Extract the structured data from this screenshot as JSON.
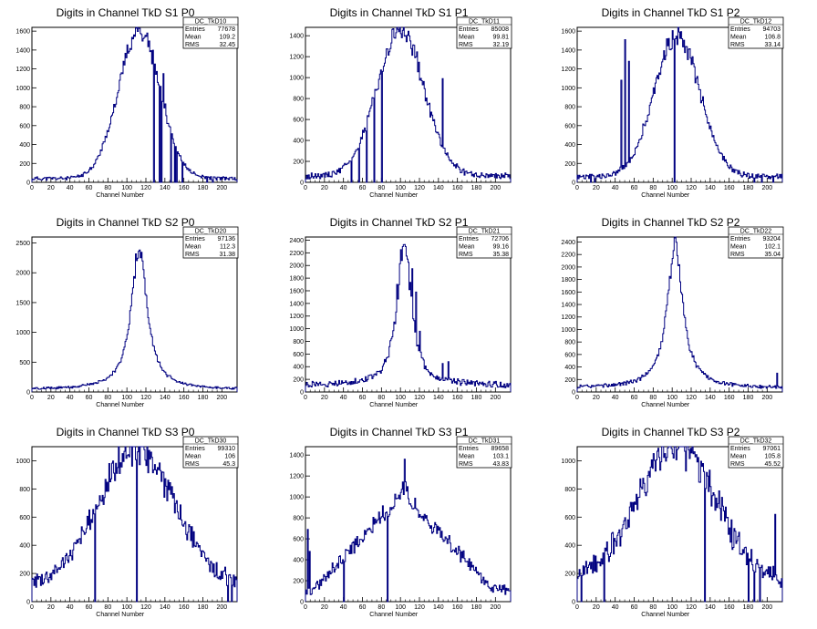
{
  "chart_data": [
    {
      "id": "TkD10",
      "type": "area",
      "title": "Digits in Channel TkD S1 P0",
      "xlabel": "Channel Number",
      "xlim": [
        0,
        216
      ],
      "ylim": [
        0,
        1640
      ],
      "yticks": [
        0,
        200,
        400,
        600,
        800,
        1000,
        1200,
        1400,
        1600
      ],
      "stats": {
        "name": "DC_TkD10",
        "entries": "77678",
        "mean": "109.2",
        "rms": "32.45"
      },
      "shape": {
        "type": "gauss",
        "mu": 113,
        "sigma": 22,
        "amp": 1570,
        "base": 40,
        "noise": 0.06,
        "seed": 11
      },
      "spikes": [
        [
          128,
          0
        ],
        [
          134,
          0
        ],
        [
          136,
          0
        ],
        [
          138,
          1150
        ],
        [
          140,
          830
        ],
        [
          146,
          0
        ],
        [
          150,
          0
        ],
        [
          152,
          0
        ],
        [
          158,
          0
        ],
        [
          184,
          0
        ],
        [
          190,
          0
        ]
      ]
    },
    {
      "id": "TkD11",
      "type": "area",
      "title": "Digits in Channel TkD S1 P1",
      "xlabel": "Channel Number",
      "xlim": [
        0,
        216
      ],
      "ylim": [
        0,
        1480
      ],
      "yticks": [
        0,
        200,
        400,
        600,
        800,
        1000,
        1200,
        1400
      ],
      "stats": {
        "name": "DC_TkD11",
        "entries": "85008",
        "mean": "99.81",
        "rms": "32.19"
      },
      "shape": {
        "type": "gauss",
        "mu": 100,
        "sigma": 25,
        "amp": 1390,
        "base": 60,
        "noise": 0.07,
        "seed": 22
      },
      "spikes": [
        [
          48,
          0
        ],
        [
          56,
          0
        ],
        [
          64,
          0
        ],
        [
          72,
          0
        ],
        [
          80,
          0
        ],
        [
          100,
          1420
        ],
        [
          144,
          990
        ]
      ]
    },
    {
      "id": "TkD12",
      "type": "area",
      "title": "Digits in Channel TkD S1 P2",
      "xlabel": "Channel Number",
      "xlim": [
        0,
        216
      ],
      "ylim": [
        0,
        1640
      ],
      "yticks": [
        0,
        200,
        400,
        600,
        800,
        1000,
        1200,
        1400,
        1600
      ],
      "stats": {
        "name": "DC_TkD12",
        "entries": "94703",
        "mean": "106.8",
        "rms": "33.14"
      },
      "shape": {
        "type": "gauss",
        "mu": 105,
        "sigma": 24,
        "amp": 1500,
        "base": 60,
        "noise": 0.07,
        "seed": 33
      },
      "spikes": [
        [
          14,
          0
        ],
        [
          18,
          0
        ],
        [
          46,
          1080
        ],
        [
          50,
          1510
        ],
        [
          54,
          1280
        ],
        [
          102,
          0
        ],
        [
          186,
          0
        ],
        [
          194,
          0
        ],
        [
          206,
          0
        ]
      ]
    },
    {
      "id": "TkD20",
      "type": "area",
      "title": "Digits in Channel TkD S2 P0",
      "xlabel": "Channel Number",
      "xlim": [
        0,
        216
      ],
      "ylim": [
        0,
        2600
      ],
      "yticks": [
        0,
        500,
        1000,
        1500,
        2000,
        2500
      ],
      "stats": {
        "name": "DC_TkD20",
        "entries": "97136",
        "mean": "112.3",
        "rms": "31.38"
      },
      "shape": {
        "type": "lorentz",
        "mu": 113,
        "gamma": 10,
        "amp": 2400,
        "base": 40,
        "noise": 0.06,
        "seed": 44
      },
      "spikes": []
    },
    {
      "id": "TkD21",
      "type": "area",
      "title": "Digits in Channel TkD S2 P1",
      "xlabel": "Channel Number",
      "xlim": [
        0,
        216
      ],
      "ylim": [
        0,
        2450
      ],
      "yticks": [
        0,
        200,
        400,
        600,
        800,
        1000,
        1200,
        1400,
        1600,
        1800,
        2000,
        2200,
        2400
      ],
      "stats": {
        "name": "DC_TkD21",
        "entries": "72706",
        "mean": "99.16",
        "rms": "35.38"
      },
      "shape": {
        "type": "lorentz",
        "mu": 104,
        "gamma": 9,
        "amp": 2250,
        "base": 100,
        "noise": 0.09,
        "seed": 55
      },
      "spikes": [
        [
          96,
          1700
        ],
        [
          100,
          2250
        ],
        [
          104,
          2330
        ],
        [
          108,
          2050
        ],
        [
          112,
          1950
        ],
        [
          116,
          1580
        ],
        [
          120,
          960
        ],
        [
          144,
          450
        ],
        [
          150,
          480
        ]
      ]
    },
    {
      "id": "TkD22",
      "type": "area",
      "title": "Digits in Channel TkD S2 P2",
      "xlabel": "Channel Number",
      "xlim": [
        0,
        216
      ],
      "ylim": [
        0,
        2480
      ],
      "yticks": [
        0,
        200,
        400,
        600,
        800,
        1000,
        1200,
        1400,
        1600,
        1800,
        2000,
        2200,
        2400
      ],
      "stats": {
        "name": "DC_TkD22",
        "entries": "93204",
        "mean": "102.1",
        "rms": "35.04"
      },
      "shape": {
        "type": "lorentz",
        "mu": 103,
        "gamma": 10,
        "amp": 2300,
        "base": 60,
        "noise": 0.07,
        "seed": 66
      },
      "spikes": [
        [
          210,
          300
        ]
      ]
    },
    {
      "id": "TkD30",
      "type": "area",
      "title": "Digits in Channel TkD S3 P0",
      "xlabel": "Channel Number",
      "xlim": [
        0,
        216
      ],
      "ylim": [
        0,
        1100
      ],
      "yticks": [
        0,
        200,
        400,
        600,
        800,
        1000
      ],
      "stats": {
        "name": "DC_TkD30",
        "entries": "99310",
        "mean": "106",
        "rms": "45.3"
      },
      "shape": {
        "type": "gauss",
        "mu": 110,
        "sigma": 40,
        "amp": 960,
        "base": 120,
        "noise": 0.08,
        "seed": 77
      },
      "spikes": [
        [
          66,
          0
        ],
        [
          110,
          0
        ],
        [
          206,
          0
        ],
        [
          210,
          0
        ]
      ]
    },
    {
      "id": "TkD31",
      "type": "area",
      "title": "Digits in Channel TkD S3 P1",
      "xlabel": "Channel Number",
      "xlim": [
        0,
        216
      ],
      "ylim": [
        0,
        1480
      ],
      "yticks": [
        0,
        200,
        400,
        600,
        800,
        1000,
        1200,
        1400
      ],
      "stats": {
        "name": "DC_TkD31",
        "entries": "89658",
        "mean": "103.1",
        "rms": "43.83"
      },
      "shape": {
        "type": "tri",
        "mu": 103,
        "width": 95,
        "amp": 1020,
        "base": 110,
        "noise": 0.06,
        "seed": 88
      },
      "spikes": [
        [
          2,
          690
        ],
        [
          4,
          480
        ],
        [
          40,
          0
        ],
        [
          86,
          0
        ],
        [
          104,
          1360
        ]
      ]
    },
    {
      "id": "TkD32",
      "type": "area",
      "title": "Digits in Channel TkD S3 P2",
      "xlabel": "Channel Number",
      "xlim": [
        0,
        216
      ],
      "ylim": [
        0,
        1100
      ],
      "yticks": [
        0,
        200,
        400,
        600,
        800,
        1000
      ],
      "stats": {
        "name": "DC_TkD32",
        "entries": "97061",
        "mean": "105.8",
        "rms": "45.52"
      },
      "shape": {
        "type": "gauss",
        "mu": 104,
        "sigma": 40,
        "amp": 960,
        "base": 160,
        "noise": 0.1,
        "seed": 99
      },
      "spikes": [
        [
          4,
          0
        ],
        [
          28,
          0
        ],
        [
          134,
          0
        ],
        [
          180,
          0
        ],
        [
          186,
          0
        ],
        [
          192,
          0
        ],
        [
          208,
          620
        ]
      ]
    }
  ],
  "labels": {
    "stat_entries": "Entries",
    "stat_mean": "Mean",
    "stat_rms": "RMS"
  },
  "colors": {
    "line": "#000080",
    "frame": "#000000",
    "background": "#ffffff"
  }
}
